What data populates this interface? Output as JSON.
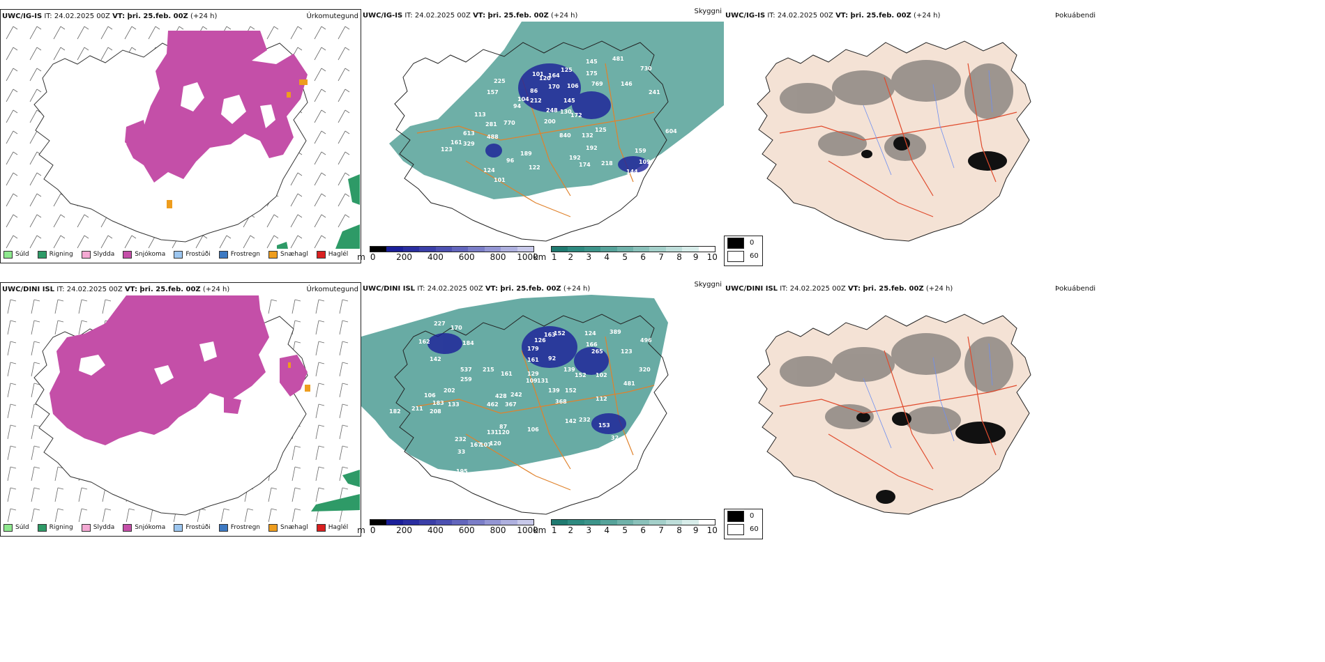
{
  "colors": {
    "snow": "#c44fa8",
    "rain": "#2e9a67",
    "drizzle": "#8ee88e",
    "sleet": "#f4a9d3",
    "frost_drizzle": "#9cc6ef",
    "frost_rain": "#3d79c2",
    "snow_pellets": "#ee9d1e",
    "hail": "#d92020",
    "teal": "#3d948a",
    "navy": "#1b1f99",
    "land_beige": "#f4e2d5",
    "road_orange": "#e0822c",
    "road_red": "#e04b2d",
    "river_blue": "#6e8ef0"
  },
  "legend": {
    "precip": [
      {
        "label": "Súld",
        "icon": "swatch-drizzle"
      },
      {
        "label": "Rigning",
        "icon": "swatch-rain"
      },
      {
        "label": "Slydda",
        "icon": "swatch-sleet"
      },
      {
        "label": "Snjókoma",
        "icon": "swatch-snow"
      },
      {
        "label": "Frostúði",
        "icon": "swatch-frost-drizzle"
      },
      {
        "label": "Frostregn",
        "icon": "swatch-frost-rain"
      },
      {
        "label": "Snæhagl",
        "icon": "swatch-snow-pellets"
      },
      {
        "label": "Haglél",
        "icon": "swatch-hail"
      }
    ],
    "ceiling": {
      "unit": "m",
      "ticks": [
        "0",
        "200",
        "400",
        "600",
        "800",
        "1000"
      ]
    },
    "visibility": {
      "unit": "km",
      "ticks": [
        "1",
        "2",
        "3",
        "4",
        "5",
        "6",
        "7",
        "8",
        "9",
        "10"
      ]
    },
    "fog": {
      "items": [
        "0",
        "60"
      ]
    }
  },
  "rows": [
    {
      "model": "UWC/IG-IS",
      "it": "IT: 24.02.2025 00Z",
      "vt": "VT: þri. 25.feb. 00Z",
      "lead": "(+24 h)",
      "panels": {
        "precip": "Úrkomutegund",
        "sky": "Skyggni",
        "fog": "Þokuábendi"
      },
      "cloud_base_labels": [
        "481",
        "730",
        "145",
        "175",
        "769",
        "146",
        "241",
        "125",
        "101",
        "164",
        "120",
        "106",
        "86",
        "170",
        "104",
        "212",
        "145",
        "225",
        "157",
        "94",
        "248",
        "130",
        "172",
        "113",
        "281",
        "770",
        "200",
        "125",
        "613",
        "488",
        "840",
        "132",
        "161",
        "329",
        "189",
        "192",
        "123",
        "604",
        "96",
        "192",
        "174",
        "218",
        "159",
        "109",
        "144",
        "124",
        "101",
        "122",
        "157"
      ]
    },
    {
      "model": "UWC/DINI ISL",
      "it": "IT: 24.02.2025 00Z",
      "vt": "VT: þri. 25.feb. 00Z",
      "lead": "(+24 h)",
      "panels": {
        "precip": "Úrkomutegund",
        "sky": "Skyggni",
        "fog": "Þokuábendi"
      },
      "cloud_base_labels": [
        "227",
        "170",
        "162",
        "184",
        "126",
        "163",
        "152",
        "124",
        "389",
        "496",
        "142",
        "179",
        "161",
        "166",
        "265",
        "123",
        "537",
        "215",
        "92",
        "161",
        "139",
        "152",
        "102",
        "320",
        "259",
        "129",
        "109",
        "131",
        "139",
        "152",
        "368",
        "481",
        "202",
        "428",
        "242",
        "112",
        "106",
        "183",
        "462",
        "367",
        "265",
        "142",
        "232",
        "153",
        "145",
        "182",
        "211",
        "208",
        "133",
        "87",
        "106",
        "131",
        "120",
        "167",
        "32",
        "170",
        "232",
        "107",
        "120",
        "125",
        "33",
        "195",
        "84"
      ]
    }
  ]
}
